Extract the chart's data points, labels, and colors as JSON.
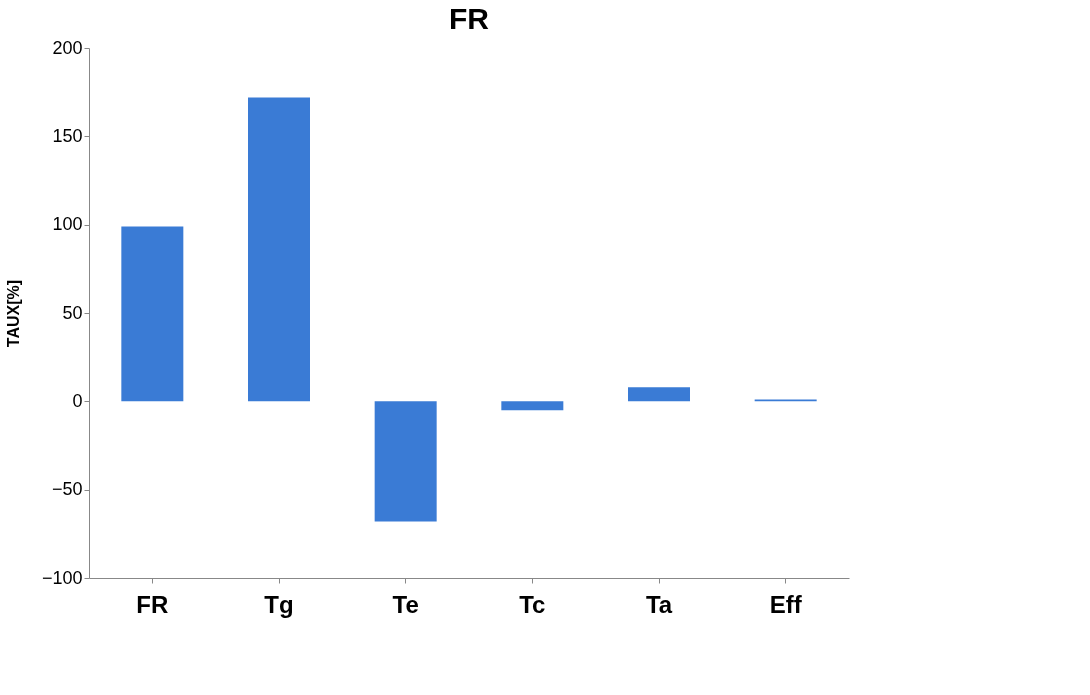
{
  "chart_data": {
    "type": "bar",
    "title": "FR",
    "ylabel": "TAUX[%]",
    "categories": [
      "FR",
      "Tg",
      "Te",
      "Tc",
      "Ta",
      "Eff"
    ],
    "values": [
      99,
      172,
      -68,
      -5,
      8,
      1
    ],
    "color": "#3a7bd5",
    "ylim": [
      -100,
      200
    ],
    "yticks": [
      -100,
      -50,
      0,
      50,
      100,
      150,
      200
    ],
    "grid": false,
    "legend": false
  }
}
